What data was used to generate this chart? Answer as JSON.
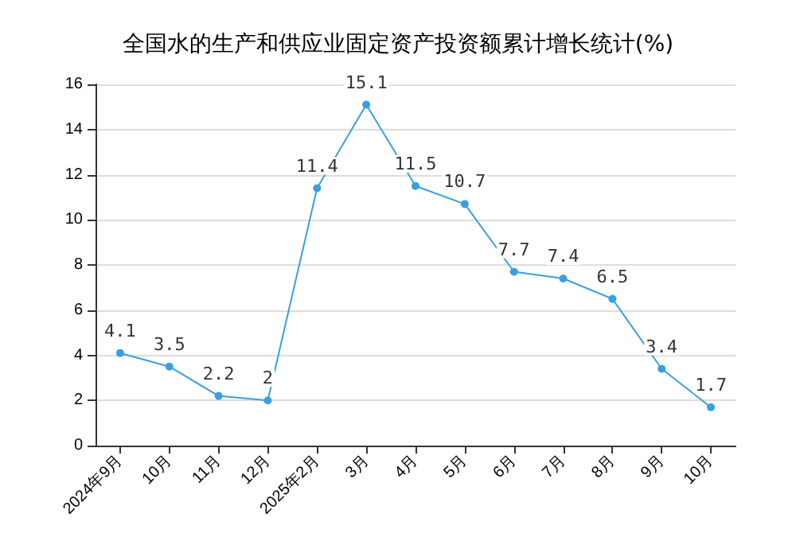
{
  "chart_data": {
    "type": "line",
    "title": "全国水的生产和供应业固定资产投资额累计增长统计(%)",
    "categories": [
      "2024年9月",
      "10月",
      "11月",
      "12月",
      "2025年2月",
      "3月",
      "4月",
      "5月",
      "6月",
      "7月",
      "8月",
      "9月",
      "10月"
    ],
    "values": [
      4.1,
      3.5,
      2.2,
      2,
      11.4,
      15.1,
      11.5,
      10.7,
      7.7,
      7.4,
      6.5,
      3.4,
      1.7
    ],
    "color": "#3b9ee0",
    "ylim": [
      0,
      16
    ],
    "yticks": [
      0,
      2,
      4,
      6,
      8,
      10,
      12,
      14,
      16
    ],
    "grid": "y",
    "marker": "circle",
    "data_labels": true
  }
}
